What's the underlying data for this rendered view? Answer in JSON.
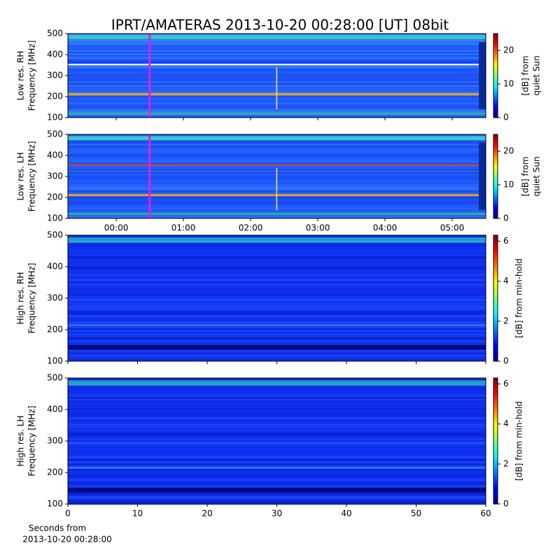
{
  "title": "IPRT/AMATERAS 2013-10-20 00:28:00 [UT]   08bit",
  "chart_data": [
    {
      "type": "heatmap",
      "ylabel": [
        "Low res. RH",
        "Frequency [MHz]"
      ],
      "ylim": [
        100,
        500
      ],
      "yticks": [
        100,
        200,
        300,
        400,
        500
      ],
      "xlim": [
        -0.72,
        5.5
      ],
      "xticks": [
        0,
        1,
        2,
        3,
        4,
        5
      ],
      "colorbar": {
        "label": [
          "[dB] from",
          "quiet Sun"
        ],
        "lim": [
          0,
          25
        ],
        "ticks": [
          0,
          10,
          20
        ]
      }
    },
    {
      "type": "heatmap",
      "ylabel": [
        "Low res. LH",
        "Frequency [MHz]"
      ],
      "ylim": [
        100,
        500
      ],
      "yticks": [
        100,
        200,
        300,
        400,
        500
      ],
      "xlim": [
        -0.72,
        5.5
      ],
      "xticks": [
        {
          "value": 0,
          "label": "00:00"
        },
        {
          "value": 1,
          "label": "01:00"
        },
        {
          "value": 2,
          "label": "02:00"
        },
        {
          "value": 3,
          "label": "03:00"
        },
        {
          "value": 4,
          "label": "04:00"
        },
        {
          "value": 5,
          "label": "05:00"
        }
      ],
      "colorbar": {
        "label": [
          "[dB] from",
          "quiet Sun"
        ],
        "lim": [
          0,
          25
        ],
        "ticks": [
          0,
          10,
          20
        ]
      }
    },
    {
      "type": "heatmap",
      "ylabel": [
        "High res. RH",
        "Frequency [MHz]"
      ],
      "ylim": [
        100,
        500
      ],
      "yticks": [
        100,
        200,
        300,
        400,
        500
      ],
      "xlim": [
        0,
        60
      ],
      "xticks": [
        0,
        10,
        20,
        30,
        40,
        50,
        60
      ],
      "colorbar": {
        "label": [
          "[dB] from min-hold"
        ],
        "lim": [
          0,
          6.3
        ],
        "ticks": [
          0,
          2,
          4,
          6
        ]
      }
    },
    {
      "type": "heatmap",
      "ylabel": [
        "High res. LH",
        "Frequency [MHz]"
      ],
      "ylim": [
        100,
        500
      ],
      "yticks": [
        100,
        200,
        300,
        400,
        500
      ],
      "xlim": [
        0,
        60
      ],
      "xticks": [
        0,
        10,
        20,
        30,
        40,
        50,
        60
      ],
      "xlabel": [
        "Seconds from",
        "2013-10-20 00:28:00"
      ],
      "colorbar": {
        "label": [
          "[dB] from min-hold"
        ],
        "lim": [
          0,
          6.3
        ],
        "ticks": [
          0,
          2,
          4,
          6
        ]
      }
    }
  ]
}
